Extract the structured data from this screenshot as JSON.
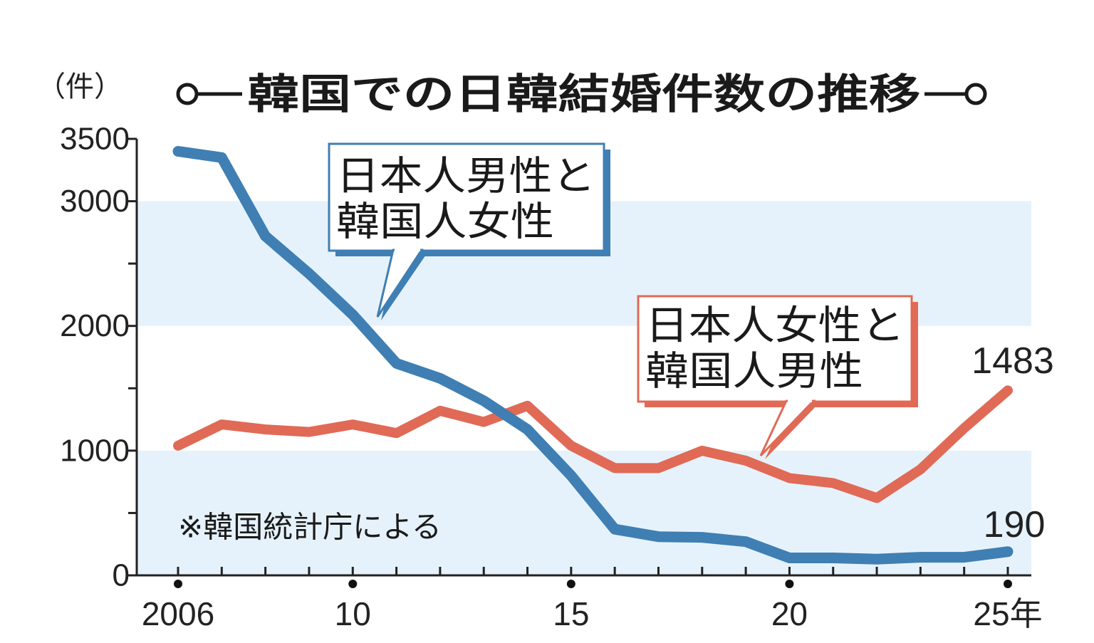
{
  "chart_data": {
    "type": "line",
    "title": "韓国での日韓結婚件数の推移",
    "unit_label": "（件）",
    "source_note": "※韓国統計庁による",
    "x": [
      2006,
      2007,
      2008,
      2009,
      2010,
      2011,
      2012,
      2013,
      2014,
      2015,
      2016,
      2017,
      2018,
      2019,
      2020,
      2021,
      2022,
      2023,
      2024,
      2025
    ],
    "x_tick_labels": [
      {
        "year": 2006,
        "label": "2006"
      },
      {
        "year": 2010,
        "label": "10"
      },
      {
        "year": 2015,
        "label": "15"
      },
      {
        "year": 2020,
        "label": "20"
      },
      {
        "year": 2025,
        "label": "25年"
      }
    ],
    "y_tick_labels": [
      {
        "value": 0,
        "label": "0"
      },
      {
        "value": 1000,
        "label": "1000"
      },
      {
        "value": 2000,
        "label": "2000"
      },
      {
        "value": 3000,
        "label": "3000"
      },
      {
        "value": 3500,
        "label": "3500"
      }
    ],
    "ylim": [
      0,
      3500
    ],
    "bands": [
      [
        0,
        1000
      ],
      [
        2000,
        3000
      ]
    ],
    "band_color": "#e6f2fb",
    "series": [
      {
        "name_lines": [
          "日本人男性と",
          "韓国人女性"
        ],
        "color": "#3f7fb3",
        "values": [
          3400,
          3350,
          2720,
          2420,
          2090,
          1700,
          1580,
          1400,
          1170,
          800,
          370,
          310,
          305,
          270,
          140,
          140,
          130,
          145,
          145,
          190
        ],
        "end_label": "190"
      },
      {
        "name_lines": [
          "日本人女性と",
          "韓国人男性"
        ],
        "color": "#e06a56",
        "values": [
          1040,
          1210,
          1170,
          1150,
          1210,
          1140,
          1320,
          1230,
          1360,
          1040,
          860,
          860,
          1000,
          920,
          780,
          740,
          620,
          850,
          1180,
          1483
        ],
        "end_label": "1483"
      }
    ]
  }
}
